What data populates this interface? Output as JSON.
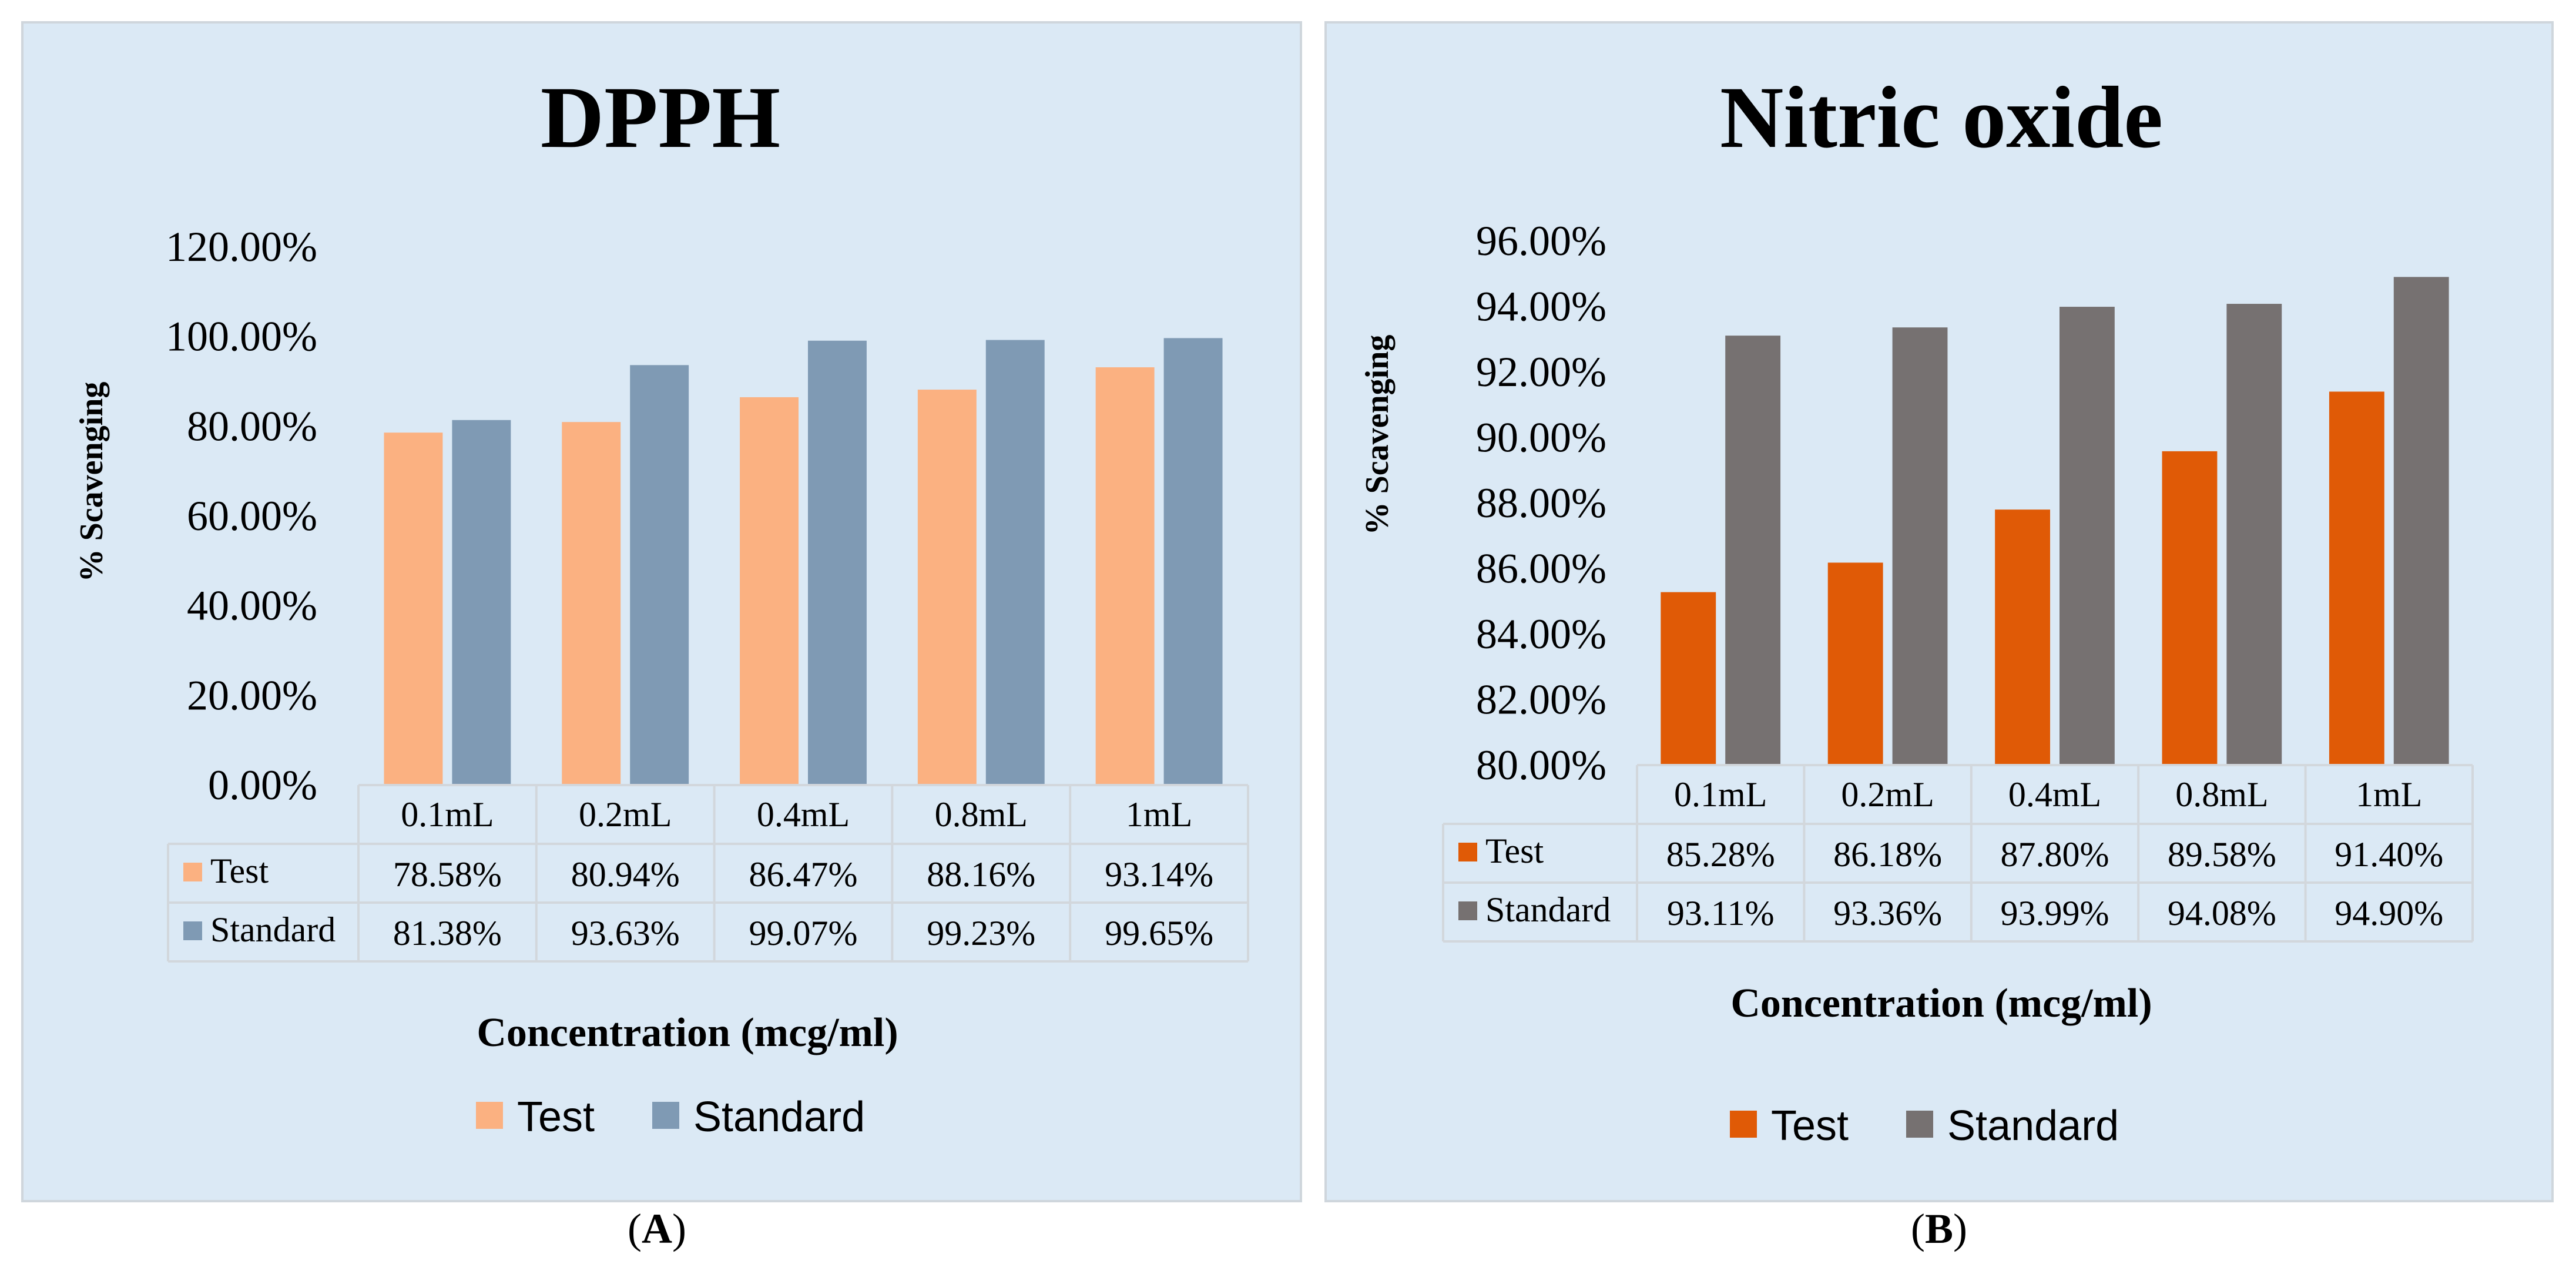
{
  "chart_data": [
    {
      "type": "bar",
      "title": "DPPH",
      "ylabel": "% Scavenging",
      "xlabel": "Concentration (mcg/ml)",
      "ylim": [
        0,
        120
      ],
      "yticks": [
        "0.00%",
        "20.00%",
        "40.00%",
        "60.00%",
        "80.00%",
        "100.00%",
        "120.00%"
      ],
      "categories": [
        "0.1mL",
        "0.2mL",
        "0.4mL",
        "0.8mL",
        "1mL"
      ],
      "series": [
        {
          "name": "Test",
          "color": "#fbb181",
          "values": [
            78.58,
            80.94,
            86.47,
            88.16,
            93.14
          ],
          "labels": [
            "78.58%",
            "80.94%",
            "86.47%",
            "88.16%",
            "93.14%"
          ]
        },
        {
          "name": "Standard",
          "color": "#7f9ab4",
          "values": [
            81.38,
            93.63,
            99.07,
            99.23,
            99.65
          ],
          "labels": [
            "81.38%",
            "93.63%",
            "99.07%",
            "99.23%",
            "99.65%"
          ]
        }
      ],
      "legend": "bottom",
      "data_table": true,
      "panel_label": "A"
    },
    {
      "type": "bar",
      "title": "Nitric oxide",
      "ylabel": "% Scavenging",
      "xlabel": "Concentration (mcg/ml)",
      "ylim": [
        80,
        96
      ],
      "yticks": [
        "80.00%",
        "82.00%",
        "84.00%",
        "86.00%",
        "88.00%",
        "90.00%",
        "92.00%",
        "94.00%",
        "96.00%"
      ],
      "categories": [
        "0.1mL",
        "0.2mL",
        "0.4mL",
        "0.8mL",
        "1mL"
      ],
      "series": [
        {
          "name": "Test",
          "color": "#e05a06",
          "values": [
            85.28,
            86.18,
            87.8,
            89.58,
            91.4
          ],
          "labels": [
            "85.28%",
            "86.18%",
            "87.80%",
            "89.58%",
            "91.40%"
          ]
        },
        {
          "name": "Standard",
          "color": "#767171",
          "values": [
            93.11,
            93.36,
            93.99,
            94.08,
            94.9
          ],
          "labels": [
            "93.11%",
            "93.36%",
            "93.99%",
            "94.08%",
            "94.90%"
          ]
        }
      ],
      "legend": "bottom",
      "data_table": true,
      "panel_label": "B"
    }
  ]
}
